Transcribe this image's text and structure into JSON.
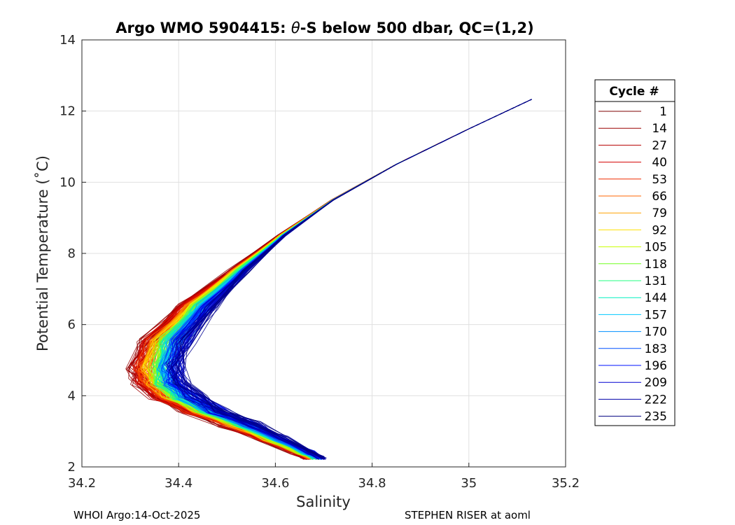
{
  "chart_data": {
    "type": "line",
    "title_prefix": "Argo WMO 5904415: ",
    "title_theta": "θ",
    "title_suffix": "-S below 500 dbar,  QC=(1,2)",
    "xlabel": "Salinity",
    "ylabel": "Potential Temperature (˚C)",
    "xlim": [
      34.2,
      35.2
    ],
    "ylim": [
      2,
      14
    ],
    "xticks": [
      "34.2",
      "34.4",
      "34.6",
      "34.8",
      "35",
      "35.2"
    ],
    "yticks": [
      "2",
      "4",
      "6",
      "8",
      "10",
      "12",
      "14"
    ],
    "grid": true,
    "legend": {
      "title": "Cycle #",
      "placement": "right-outside",
      "entries": [
        {
          "label": "1",
          "color": "#7f0000"
        },
        {
          "label": "14",
          "color": "#9b0000"
        },
        {
          "label": "27",
          "color": "#b70000"
        },
        {
          "label": "40",
          "color": "#d30000"
        },
        {
          "label": "53",
          "color": "#ef2a00"
        },
        {
          "label": "66",
          "color": "#ff6400"
        },
        {
          "label": "79",
          "color": "#ffa000"
        },
        {
          "label": "92",
          "color": "#ffe000"
        },
        {
          "label": "105",
          "color": "#c8ff00"
        },
        {
          "label": "118",
          "color": "#70ff20"
        },
        {
          "label": "131",
          "color": "#20ff80"
        },
        {
          "label": "144",
          "color": "#00f0c0"
        },
        {
          "label": "157",
          "color": "#00c8ff"
        },
        {
          "label": "170",
          "color": "#0090ff"
        },
        {
          "label": "183",
          "color": "#0050ff"
        },
        {
          "label": "196",
          "color": "#0010ff"
        },
        {
          "label": "209",
          "color": "#0000d0"
        },
        {
          "label": "222",
          "color": "#0000a8"
        },
        {
          "label": "235",
          "color": "#000080"
        }
      ]
    },
    "profile_template": {
      "theta": [
        12.33,
        11.5,
        10.5,
        9.5,
        8.5,
        7.5,
        6.5,
        5.5,
        4.8,
        4.4,
        4.0,
        3.6,
        3.2,
        2.8,
        2.4,
        2.25
      ],
      "salinity": [
        35.13,
        35.0,
        34.85,
        34.72,
        34.62,
        34.54,
        34.47,
        34.42,
        34.405,
        34.41,
        34.44,
        34.49,
        34.56,
        34.62,
        34.68,
        34.7
      ]
    },
    "series_note": "236 profiles; cycle 1 (dark red) freshest at mid-depth (S min ~34.30 near 4.5 C), later cycles (blue) saltier (S min ~34.40); all converge near 34.70 at 2.3 C and 35.13 at 12.3 C"
  },
  "footer": {
    "left": "WHOI Argo:14-Oct-2025",
    "right": "STEPHEN RISER at aoml"
  }
}
